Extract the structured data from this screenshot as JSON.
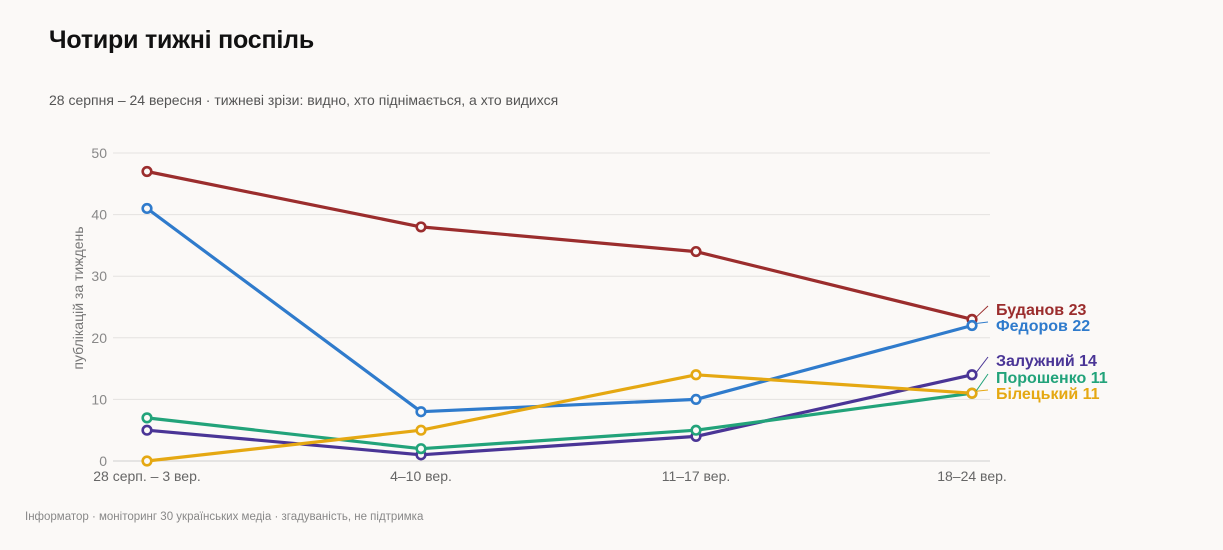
{
  "title": "Чотири тижні поспіль",
  "subtitle": "28 серпня – 24 вересня · тижневі зрізи: видно, хто піднімається, а хто видихся",
  "footer": "Інформатор · моніторинг 30 українських медіа · згадуваність, не підтримка",
  "chart_data": {
    "type": "line",
    "ylabel": "публікацій за тиждень",
    "xlabel": "",
    "ylim": [
      0,
      50
    ],
    "yticks": [
      0,
      10,
      20,
      30,
      40,
      50
    ],
    "grid": true,
    "legend": "direct labels at line ends (right)",
    "categories": [
      "28 серп. – 3 вер.",
      "4–10 вер.",
      "11–17 вер.",
      "18–24 вер."
    ],
    "series": [
      {
        "name": "Буданов",
        "label": "Буданов 23",
        "color": "#9b2d2d",
        "values": [
          47,
          38,
          34,
          23
        ]
      },
      {
        "name": "Федоров",
        "label": "Федоров 22",
        "color": "#2f7bcc",
        "values": [
          41,
          8,
          10,
          22
        ]
      },
      {
        "name": "Залужний",
        "label": "Залужний 14",
        "color": "#4a3596",
        "values": [
          5,
          1,
          4,
          14
        ]
      },
      {
        "name": "Порошенко",
        "label": "Порошенко 11",
        "color": "#22a37a",
        "values": [
          7,
          2,
          5,
          11
        ]
      },
      {
        "name": "Білецький",
        "label": "Білецький 11",
        "color": "#e5a812",
        "values": [
          0,
          5,
          14,
          11
        ]
      }
    ]
  }
}
